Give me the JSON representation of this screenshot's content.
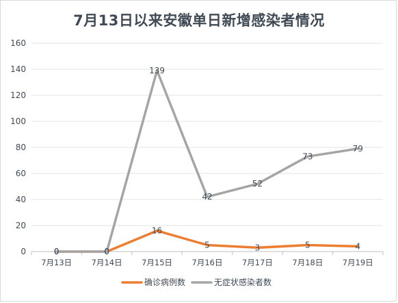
{
  "chart_data": {
    "type": "line",
    "title": "7月13日以来安徽单日新增感染者情况",
    "categories": [
      "7月13日",
      "7月14日",
      "7月15日",
      "7月16日",
      "7月17日",
      "7月18日",
      "7月19日"
    ],
    "ylim": [
      0,
      160
    ],
    "yticks": [
      0,
      20,
      40,
      60,
      80,
      100,
      120,
      140,
      160
    ],
    "grid": true,
    "legend_position": "bottom",
    "series": [
      {
        "name": "确诊病例数",
        "values": [
          0,
          0,
          16,
          5,
          3,
          5,
          4
        ],
        "color": "#ed7d31"
      },
      {
        "name": "无症状感染者数",
        "values": [
          0,
          0,
          139,
          42,
          52,
          73,
          79
        ],
        "color": "#a5a5a5"
      }
    ]
  }
}
